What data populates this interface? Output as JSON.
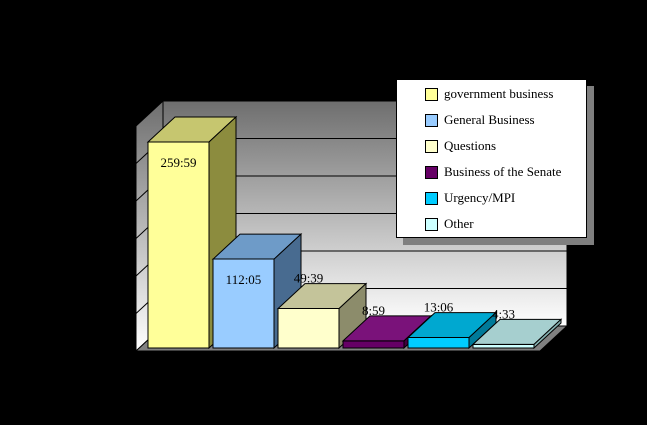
{
  "app": {
    "background": "#000000",
    "text_color": "#000000"
  },
  "chart_data": {
    "type": "bar",
    "projection": "3d",
    "title": "",
    "xlabel": "",
    "ylabel": "",
    "value_format": "h:mm",
    "data_labels": true,
    "axis_tick_labels_visible": false,
    "ylim": [
      0,
      300
    ],
    "gridline_count": 6,
    "legend_position": "right-overlay",
    "categories": [
      "government business",
      "General Business",
      "Questions",
      "Business of the Senate",
      "Urgency/MPI",
      "Other"
    ],
    "bars": [
      {
        "category": "government business",
        "label": "259:59",
        "hours": 259.983,
        "front_color": "#FFFF99",
        "top_color": "#C6C66F",
        "side_color": "#8C8C3E"
      },
      {
        "category": "General Business",
        "label": "112:05",
        "hours": 112.083,
        "front_color": "#99CCFF",
        "top_color": "#6E9BC8",
        "side_color": "#486B90"
      },
      {
        "category": "Questions",
        "label": "49:39",
        "hours": 49.65,
        "front_color": "#FFFFCC",
        "top_color": "#C4C49A",
        "side_color": "#8C8C6B"
      },
      {
        "category": "Business of the Senate",
        "label": "8:59",
        "hours": 8.983,
        "front_color": "#660066",
        "top_color": "#7A127A",
        "side_color": "#400040"
      },
      {
        "category": "Urgency/MPI",
        "label": "13:06",
        "hours": 13.1,
        "front_color": "#00CCFF",
        "top_color": "#00A8D0",
        "side_color": "#007A99"
      },
      {
        "category": "Other",
        "label": "4:33",
        "hours": 4.55,
        "front_color": "#CCFFFF",
        "top_color": "#A6CFCF",
        "side_color": "#86B2B2"
      }
    ],
    "layout": {
      "wall_gradient_top": "#6E6E6E",
      "wall_gradient_bottom": "#FFFFFF",
      "floor_color": "#808080",
      "gridline_color": "#000000",
      "legend_background": "#FFFFFF",
      "legend_shadow": "#7F7F7F",
      "label_color": "#000000"
    }
  }
}
